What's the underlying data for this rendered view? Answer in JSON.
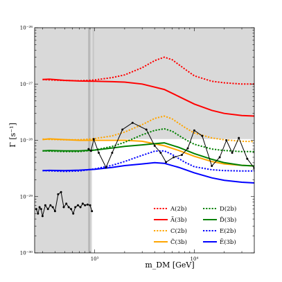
{
  "chart_data": {
    "type": "line",
    "xlabel": "m_DM [GeV]",
    "ylabel": "Γ [s⁻¹]",
    "xscale": "log",
    "yscale": "log",
    "xlim": [
      250,
      40000
    ],
    "ylim": [
      1e-30,
      1e-26
    ],
    "xticks": [
      {
        "value": 1000,
        "label": "10³"
      },
      {
        "value": 10000,
        "label": "10⁴"
      }
    ],
    "yticks": [
      {
        "value": 1e-30,
        "label": "10⁻³⁰"
      },
      {
        "value": 1e-29,
        "label": "10⁻²⁹"
      },
      {
        "value": 1e-28,
        "label": "10⁻²⁸"
      },
      {
        "value": 1e-27,
        "label": "10⁻²⁷"
      },
      {
        "value": 1e-26,
        "label": "10⁻²⁶"
      }
    ],
    "grid": false,
    "legend": {
      "placement": "bottom-right",
      "entries": [
        {
          "key": "A",
          "label": "A(2b)",
          "color": "#ff0000",
          "dash": "dotted"
        },
        {
          "key": "At",
          "label": "Ã(3b)",
          "color": "#ff0000",
          "dash": "solid"
        },
        {
          "key": "C",
          "label": "C(2b)",
          "color": "#ffa500",
          "dash": "dotted"
        },
        {
          "key": "Ct",
          "label": "C̃(3b)",
          "color": "#ffa500",
          "dash": "solid"
        },
        {
          "key": "D",
          "label": "D(2b)",
          "color": "#008000",
          "dash": "dotted"
        },
        {
          "key": "Dt",
          "label": "D̃(3b)",
          "color": "#008000",
          "dash": "solid"
        },
        {
          "key": "E",
          "label": "E(2b)",
          "color": "#0000ff",
          "dash": "dotted"
        },
        {
          "key": "Et",
          "label": "Ẽ(3b)",
          "color": "#0000ff",
          "dash": "solid"
        }
      ]
    },
    "series": [
      {
        "key": "A",
        "color": "#ff0000",
        "dash": "dotted",
        "x": [
          300,
          450,
          700,
          1000,
          1500,
          2000,
          3000,
          4000,
          5000,
          6000,
          8000,
          10000,
          15000,
          20000,
          30000,
          40000
        ],
        "y": [
          1.2e-27,
          1.16e-27,
          1.14e-27,
          1.18e-27,
          1.3e-27,
          1.45e-27,
          1.95e-27,
          2.6e-27,
          3e-27,
          2.7e-27,
          1.85e-27,
          1.4e-27,
          1.12e-27,
          1.05e-27,
          1e-27,
          1e-27
        ]
      },
      {
        "key": "At",
        "color": "#ff0000",
        "dash": "solid",
        "x": [
          300,
          350,
          500,
          700,
          1000,
          1500,
          2000,
          3000,
          5000,
          7000,
          10000,
          15000,
          20000,
          30000,
          40000
        ],
        "y": [
          1.2e-27,
          1.22e-27,
          1.16e-27,
          1.13e-27,
          1.12e-27,
          1.1e-27,
          1.08e-27,
          1e-27,
          8e-28,
          6e-28,
          4.4e-28,
          3.4e-28,
          3e-28,
          2.75e-28,
          2.7e-28
        ]
      },
      {
        "key": "C",
        "color": "#ffa500",
        "dash": "dotted",
        "x": [
          300,
          500,
          700,
          1000,
          1500,
          2000,
          3000,
          4000,
          5000,
          6000,
          8000,
          10000,
          15000,
          20000,
          30000,
          40000
        ],
        "y": [
          1.05e-28,
          1.02e-28,
          1.02e-28,
          1.07e-28,
          1.2e-28,
          1.4e-28,
          1.9e-28,
          2.45e-28,
          2.7e-28,
          2.4e-28,
          1.7e-28,
          1.35e-28,
          1.1e-28,
          1.02e-28,
          9.6e-29,
          9.5e-29
        ]
      },
      {
        "key": "Ct",
        "color": "#ffa500",
        "dash": "solid",
        "x": [
          300,
          350,
          500,
          700,
          1000,
          1500,
          2000,
          3000,
          5000,
          7000,
          10000,
          15000,
          20000,
          30000,
          40000
        ],
        "y": [
          1.03e-28,
          1.06e-28,
          1.03e-28,
          1e-28,
          1e-28,
          1e-28,
          1e-28,
          9.6e-29,
          8e-29,
          6.6e-29,
          5.2e-29,
          4.2e-29,
          3.8e-29,
          3.6e-29,
          3.5e-29
        ]
      },
      {
        "key": "D",
        "color": "#008000",
        "dash": "dotted",
        "x": [
          300,
          500,
          700,
          1000,
          1500,
          2000,
          3000,
          4000,
          5000,
          6000,
          8000,
          10000,
          15000,
          20000,
          30000,
          40000
        ],
        "y": [
          6.5e-29,
          6.3e-29,
          6.3e-29,
          6.7e-29,
          7.8e-29,
          9.2e-29,
          1.25e-28,
          1.5e-28,
          1.6e-28,
          1.45e-28,
          1.05e-28,
          8.5e-29,
          7e-29,
          6.6e-29,
          6.3e-29,
          6.3e-29
        ]
      },
      {
        "key": "Dt",
        "color": "#008000",
        "dash": "solid",
        "x": [
          300,
          350,
          500,
          700,
          1000,
          1500,
          2000,
          3000,
          4000,
          5000,
          7000,
          10000,
          15000,
          20000,
          30000,
          40000
        ],
        "y": [
          6.5e-29,
          6.6e-29,
          6.5e-29,
          6.5e-29,
          6.7e-29,
          7.3e-29,
          7.8e-29,
          8.3e-29,
          8.7e-29,
          9e-29,
          7.5e-29,
          5.8e-29,
          4.6e-29,
          4e-29,
          3.6e-29,
          3.5e-29
        ]
      },
      {
        "key": "E",
        "color": "#0000ff",
        "dash": "dotted",
        "x": [
          300,
          500,
          700,
          1000,
          1500,
          2000,
          3000,
          4000,
          5000,
          6000,
          8000,
          10000,
          15000,
          20000,
          30000,
          40000
        ],
        "y": [
          2.9e-29,
          2.8e-29,
          2.85e-29,
          3.1e-29,
          3.6e-29,
          4.2e-29,
          5.4e-29,
          6.4e-29,
          6.5e-29,
          5.6e-29,
          4.1e-29,
          3.4e-29,
          3e-29,
          2.9e-29,
          2.85e-29,
          2.85e-29
        ]
      },
      {
        "key": "Et",
        "color": "#0000ff",
        "dash": "solid",
        "x": [
          300,
          350,
          500,
          700,
          1000,
          1500,
          2000,
          3000,
          4000,
          5000,
          7000,
          10000,
          15000,
          20000,
          30000,
          40000
        ],
        "y": [
          2.9e-29,
          2.92e-29,
          2.9e-29,
          2.95e-29,
          3.05e-29,
          3.3e-29,
          3.55e-29,
          3.8e-29,
          4e-29,
          3.9e-29,
          3.3e-29,
          2.65e-29,
          2.15e-29,
          1.95e-29,
          1.8e-29,
          1.75e-29
        ]
      }
    ],
    "limits": [
      {
        "key": "low",
        "color": "#000000",
        "x": [
          260,
          270,
          280,
          290,
          300,
          320,
          340,
          360,
          380,
          400,
          430,
          460,
          490,
          520,
          550,
          580,
          610,
          640,
          680,
          720,
          760,
          800,
          850,
          900,
          940
        ],
        "y": [
          6e-30,
          5e-30,
          6.5e-30,
          6e-30,
          4.5e-30,
          7e-30,
          6e-30,
          7e-30,
          6.5e-30,
          5.5e-30,
          1.1e-29,
          1.2e-29,
          6.5e-30,
          7.5e-30,
          6.5e-30,
          6e-30,
          5e-30,
          6.5e-30,
          7e-30,
          6.5e-30,
          7.5e-30,
          7e-30,
          7.2e-30,
          7e-30,
          5.5e-30
        ]
      },
      {
        "key": "high",
        "color": "#000000",
        "x": [
          870,
          920,
          980,
          1100,
          1300,
          1500,
          1900,
          2400,
          3300,
          4000,
          4600,
          5200,
          6200,
          7500,
          8600,
          10000,
          12000,
          15000,
          18000,
          21000,
          24000,
          28000,
          34000,
          40000
        ],
        "y": [
          7e-29,
          6.5e-29,
          1.05e-28,
          6e-29,
          3.3e-29,
          6e-29,
          1.55e-28,
          2.05e-28,
          1.55e-28,
          8e-29,
          6e-29,
          4.1e-29,
          5e-29,
          5.5e-29,
          7.2e-29,
          1.5e-28,
          1.2e-28,
          3.5e-29,
          5e-29,
          1e-28,
          6e-29,
          1.1e-28,
          4.7e-29,
          3.2e-29
        ]
      }
    ]
  }
}
